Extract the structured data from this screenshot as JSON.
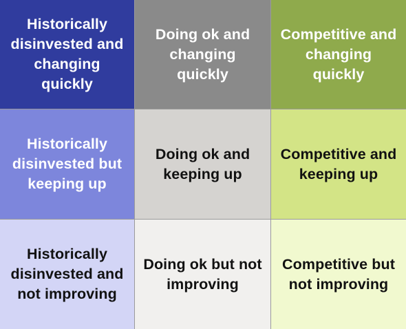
{
  "matrix": {
    "rows": [
      [
        {
          "label": "Historically\ndisinvested and\nchanging quickly",
          "bg": "#303c9e",
          "fg": "#ffffff"
        },
        {
          "label": "Doing ok and\nchanging quickly",
          "bg": "#8a8a8a",
          "fg": "#ffffff"
        },
        {
          "label": "Competitive and\nchanging quickly",
          "bg": "#8faa4c",
          "fg": "#ffffff"
        }
      ],
      [
        {
          "label": "Historically\ndisinvested but\nkeeping up",
          "bg": "#7d86dc",
          "fg": "#ffffff"
        },
        {
          "label": "Doing ok and\nkeeping up",
          "bg": "#d5d3d0",
          "fg": "#111111"
        },
        {
          "label": "Competitive and\nkeeping up",
          "bg": "#d3e486",
          "fg": "#111111"
        }
      ],
      [
        {
          "label": "Historically\ndisinvested and\nnot improving",
          "bg": "#d3d5f6",
          "fg": "#111111"
        },
        {
          "label": "Doing ok but not\nimproving",
          "bg": "#f1f0ee",
          "fg": "#111111"
        },
        {
          "label": "Competitive but\nnot improving",
          "bg": "#f1f9cf",
          "fg": "#111111"
        }
      ]
    ]
  }
}
